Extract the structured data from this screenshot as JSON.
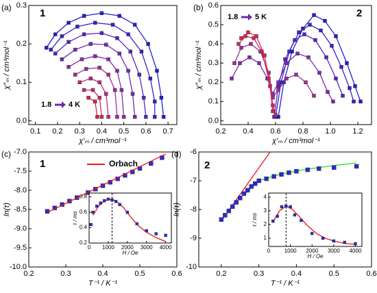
{
  "chart_data": [
    {
      "type": "scatter",
      "panel_label": "(a)",
      "xlabel": "χ′ₘ / cm³mol⁻¹",
      "ylabel": "χ″ₘ / cm³mol⁻¹",
      "xlim": [
        0.07,
        0.74
      ],
      "ylim": [
        -0.01,
        0.3
      ],
      "xticks": [
        0.1,
        0.2,
        0.3,
        0.4,
        0.5,
        0.6,
        0.7
      ],
      "yticks": [
        {
          "value": 0,
          "label": "0.0"
        },
        0.1,
        0.2,
        0.3
      ],
      "annotations": [
        "1",
        "1.8",
        "4 K"
      ],
      "series": [
        {
          "color": "#1f1fd0",
          "mode": "lines+markers",
          "x": [
            0.15,
            0.19,
            0.25,
            0.32,
            0.4,
            0.48,
            0.55,
            0.61,
            0.65,
            0.67,
            0.68
          ],
          "y": [
            0.19,
            0.225,
            0.255,
            0.273,
            0.28,
            0.273,
            0.25,
            0.2,
            0.13,
            0.06,
            0.01
          ]
        },
        {
          "color": "#3a22c8",
          "mode": "lines+markers",
          "x": [
            0.17,
            0.22,
            0.29,
            0.37,
            0.45,
            0.52,
            0.58,
            0.62,
            0.64,
            0.64
          ],
          "y": [
            0.185,
            0.22,
            0.245,
            0.255,
            0.25,
            0.225,
            0.18,
            0.11,
            0.05,
            0.01
          ]
        },
        {
          "color": "#5525bf",
          "mode": "lines+markers",
          "x": [
            0.19,
            0.25,
            0.32,
            0.4,
            0.47,
            0.53,
            0.57,
            0.59,
            0.6
          ],
          "y": [
            0.175,
            0.205,
            0.225,
            0.228,
            0.215,
            0.18,
            0.12,
            0.06,
            0.01
          ]
        },
        {
          "color": "#6e28b5",
          "mode": "lines+markers",
          "x": [
            0.22,
            0.28,
            0.35,
            0.42,
            0.48,
            0.52,
            0.54,
            0.55
          ],
          "y": [
            0.16,
            0.185,
            0.2,
            0.198,
            0.175,
            0.13,
            0.07,
            0.01
          ]
        },
        {
          "color": "#8a2aa8",
          "mode": "lines+markers",
          "x": [
            0.25,
            0.31,
            0.37,
            0.43,
            0.47,
            0.49,
            0.5
          ],
          "y": [
            0.14,
            0.16,
            0.168,
            0.16,
            0.13,
            0.08,
            0.01
          ]
        },
        {
          "color": "#a02b97",
          "mode": "lines+markers",
          "x": [
            0.28,
            0.33,
            0.39,
            0.43,
            0.46,
            0.47
          ],
          "y": [
            0.12,
            0.135,
            0.138,
            0.12,
            0.08,
            0.01
          ]
        },
        {
          "color": "#b62b80",
          "mode": "lines+markers",
          "x": [
            0.3,
            0.35,
            0.39,
            0.42,
            0.43
          ],
          "y": [
            0.1,
            0.11,
            0.1,
            0.07,
            0.01
          ]
        },
        {
          "color": "#c82a66",
          "mode": "lines+markers",
          "x": [
            0.32,
            0.36,
            0.39,
            0.4
          ],
          "y": [
            0.08,
            0.08,
            0.06,
            0.01
          ]
        },
        {
          "color": "#d8234a",
          "mode": "lines+markers",
          "x": [
            0.34,
            0.37,
            0.38
          ],
          "y": [
            0.06,
            0.05,
            0.01
          ]
        }
      ]
    },
    {
      "type": "scatter",
      "panel_label": "(b)",
      "xlabel": "χ′ₘ / cm³mol⁻¹",
      "ylabel": "χ″ₘ / cm³mol⁻¹",
      "xlim": [
        0.2,
        1.3
      ],
      "ylim": [
        -0.02,
        0.6
      ],
      "xticks": [
        0.2,
        0.4,
        0.6,
        0.8,
        {
          "value": 1,
          "label": "1.0"
        },
        1.2
      ],
      "yticks": [
        {
          "value": 0,
          "label": "0.0"
        },
        0.1,
        0.2,
        0.3,
        0.4,
        0.5,
        0.6
      ],
      "annotations": [
        "2",
        "1.8",
        "5 K"
      ],
      "series": [
        {
          "color": "#1f1fd0",
          "mode": "lines+markers",
          "x": [
            0.62,
            0.66,
            0.72,
            0.8,
            0.88,
            0.96,
            1.04,
            1.12,
            1.18,
            1.22
          ],
          "y": [
            0.02,
            0.2,
            0.36,
            0.48,
            0.55,
            0.52,
            0.44,
            0.3,
            0.18,
            0.1
          ]
        },
        {
          "color": "#3a22c8",
          "mode": "lines+markers",
          "x": [
            0.6,
            0.64,
            0.7,
            0.77,
            0.85,
            0.93,
            1.01,
            1.08,
            1.14,
            1.17
          ],
          "y": [
            0.02,
            0.2,
            0.36,
            0.46,
            0.5,
            0.47,
            0.39,
            0.28,
            0.17,
            0.1
          ]
        },
        {
          "color": "#5525bf",
          "mode": "lines+markers",
          "x": [
            0.59,
            0.62,
            0.67,
            0.74,
            0.81,
            0.89,
            0.97,
            1.04,
            1.09
          ],
          "y": [
            0.02,
            0.18,
            0.32,
            0.42,
            0.45,
            0.42,
            0.33,
            0.22,
            0.13
          ]
        },
        {
          "color": "#7a29b0",
          "mode": "lines+markers",
          "x": [
            0.28,
            0.34,
            0.41,
            0.48,
            0.54,
            0.58,
            0.62,
            0.68,
            0.76,
            0.84,
            0.92,
            0.98,
            1.02
          ],
          "y": [
            0.22,
            0.3,
            0.33,
            0.3,
            0.22,
            0.14,
            0.2,
            0.3,
            0.35,
            0.33,
            0.25,
            0.15,
            0.1
          ]
        },
        {
          "color": "#a02b97",
          "mode": "lines+markers",
          "x": [
            0.3,
            0.35,
            0.42,
            0.49,
            0.55,
            0.58,
            0.62,
            0.68,
            0.75,
            0.82,
            0.88
          ],
          "y": [
            0.3,
            0.38,
            0.4,
            0.36,
            0.25,
            0.12,
            0.16,
            0.22,
            0.24,
            0.2,
            0.13
          ]
        },
        {
          "color": "#c82a66",
          "mode": "lines+markers",
          "x": [
            0.33,
            0.38,
            0.44,
            0.5,
            0.55,
            0.58,
            0.6
          ],
          "y": [
            0.4,
            0.44,
            0.43,
            0.36,
            0.22,
            0.08,
            0.03
          ]
        },
        {
          "color": "#d8234a",
          "mode": "lines+markers",
          "x": [
            0.35,
            0.4,
            0.46,
            0.52,
            0.56,
            0.58
          ],
          "y": [
            0.43,
            0.46,
            0.44,
            0.34,
            0.18,
            0.05
          ]
        }
      ]
    },
    {
      "type": "scatter",
      "panel_label": "(c)",
      "xlabel": "T⁻¹ / K⁻¹",
      "ylabel": "ln(τ)",
      "xlim": [
        0.2,
        0.6
      ],
      "ylim": [
        -10,
        -7
      ],
      "xticks": [
        0.2,
        0.3,
        0.4,
        0.5,
        0.6
      ],
      "yticks": [
        {
          "value": -10,
          "label": "-10.0"
        },
        -9.5,
        {
          "value": -9,
          "label": "-9.0"
        },
        -8.5,
        {
          "value": -8,
          "label": "-8.0"
        },
        -7.5,
        {
          "value": -7,
          "label": "-7.0"
        }
      ],
      "annotations": [
        "1"
      ],
      "series": [
        {
          "color": "#2b2bd0",
          "mode": "markers",
          "x": [
            0.25,
            0.27,
            0.29,
            0.31,
            0.33,
            0.36,
            0.38,
            0.4,
            0.42,
            0.44,
            0.46,
            0.48,
            0.5,
            0.53,
            0.56
          ],
          "y": [
            -8.55,
            -8.46,
            -8.37,
            -8.28,
            -8.19,
            -8.06,
            -7.97,
            -7.88,
            -7.79,
            -7.7,
            -7.61,
            -7.52,
            -7.43,
            -7.3,
            -7.15
          ]
        },
        {
          "name": "Orbach",
          "color": "#e8141c",
          "mode": "lines",
          "x": [
            0.25,
            0.57
          ],
          "y": [
            -8.58,
            -7.05
          ]
        }
      ]
    },
    {
      "type": "scatter",
      "panel_label": "(d)",
      "xlabel": "T⁻¹ / K⁻¹",
      "ylabel": "ln(τ)",
      "xlim": [
        0.14,
        0.6
      ],
      "ylim": [
        -10,
        -6
      ],
      "xticks": [
        0.2,
        0.3,
        0.4,
        0.5,
        0.6
      ],
      "yticks": [
        -10,
        -9,
        -8,
        -7,
        -6
      ],
      "annotations": [
        "2"
      ],
      "series": [
        {
          "color": "#e8141c",
          "mode": "lines",
          "x": [
            0.2,
            0.33
          ],
          "y": [
            -8.4,
            -6.0
          ]
        },
        {
          "color": "#22dd22",
          "mode": "lines",
          "x": [
            0.26,
            0.3,
            0.35,
            0.4,
            0.45,
            0.5,
            0.56
          ],
          "y": [
            -7.5,
            -7.0,
            -6.8,
            -6.66,
            -6.56,
            -6.47,
            -6.38
          ]
        },
        {
          "color": "#2b2bd0",
          "mode": "markers",
          "x": [
            0.2,
            0.21,
            0.22,
            0.23,
            0.24,
            0.25,
            0.26,
            0.27,
            0.28,
            0.29,
            0.3,
            0.32,
            0.34,
            0.36,
            0.38,
            0.4,
            0.43,
            0.46,
            0.5,
            0.56
          ],
          "y": [
            -8.35,
            -8.2,
            -8.05,
            -7.9,
            -7.75,
            -7.6,
            -7.45,
            -7.33,
            -7.2,
            -7.1,
            -7.0,
            -6.93,
            -6.85,
            -6.78,
            -6.72,
            -6.67,
            -6.62,
            -6.58,
            -6.54,
            -6.5
          ]
        }
      ]
    },
    {
      "type": "scatter",
      "xlabel": "H / Oe",
      "ylabel": "τ / ms",
      "xlim": [
        0,
        4300
      ],
      "ylim": [
        0.2,
        0.85
      ],
      "xticks": [
        0,
        1000,
        2000,
        3000,
        4000
      ],
      "yticks": [
        0.2,
        0.4,
        0.6,
        0.8
      ],
      "vline": 1200,
      "series": [
        {
          "color": "#e8141c",
          "mode": "lines",
          "x": [
            200,
            500,
            800,
            1100,
            1400,
            1800,
            2200,
            2600,
            3000,
            3500,
            4000
          ],
          "y": [
            0.56,
            0.68,
            0.75,
            0.77,
            0.75,
            0.66,
            0.53,
            0.42,
            0.34,
            0.27,
            0.22
          ]
        },
        {
          "color": "#2b2bd0",
          "mode": "markers",
          "x": [
            100,
            200,
            400,
            600,
            800,
            1000,
            1200,
            1400,
            1600,
            2000,
            2500,
            3000,
            3500,
            4000
          ],
          "y": [
            0.44,
            0.6,
            0.68,
            0.72,
            0.75,
            0.77,
            0.76,
            0.74,
            0.7,
            0.6,
            0.45,
            0.36,
            0.32,
            0.3
          ]
        }
      ]
    },
    {
      "type": "scatter",
      "xlabel": "H / Oe",
      "ylabel": "τ / ms",
      "xlim": [
        0,
        4300
      ],
      "ylim": [
        0.4,
        4.3
      ],
      "xticks": [
        0,
        1000,
        2000,
        3000,
        4000
      ],
      "yticks": [
        1,
        2,
        3,
        4
      ],
      "vline": 800,
      "series": [
        {
          "color": "#e8141c",
          "mode": "lines",
          "x": [
            200,
            500,
            800,
            1100,
            1400,
            1800,
            2200,
            2600,
            3000,
            3500,
            4000
          ],
          "y": [
            2.2,
            3.0,
            3.35,
            3.1,
            2.6,
            1.9,
            1.35,
            1.0,
            0.8,
            0.62,
            0.55
          ]
        },
        {
          "color": "#2b2bd0",
          "mode": "markers",
          "x": [
            200,
            400,
            600,
            800,
            1000,
            1200,
            1500,
            2000,
            2500,
            3000,
            3500,
            4000
          ],
          "y": [
            2.25,
            2.6,
            3.3,
            3.35,
            3.3,
            2.7,
            2.3,
            1.35,
            1.0,
            0.8,
            0.7,
            0.6
          ]
        }
      ]
    }
  ]
}
